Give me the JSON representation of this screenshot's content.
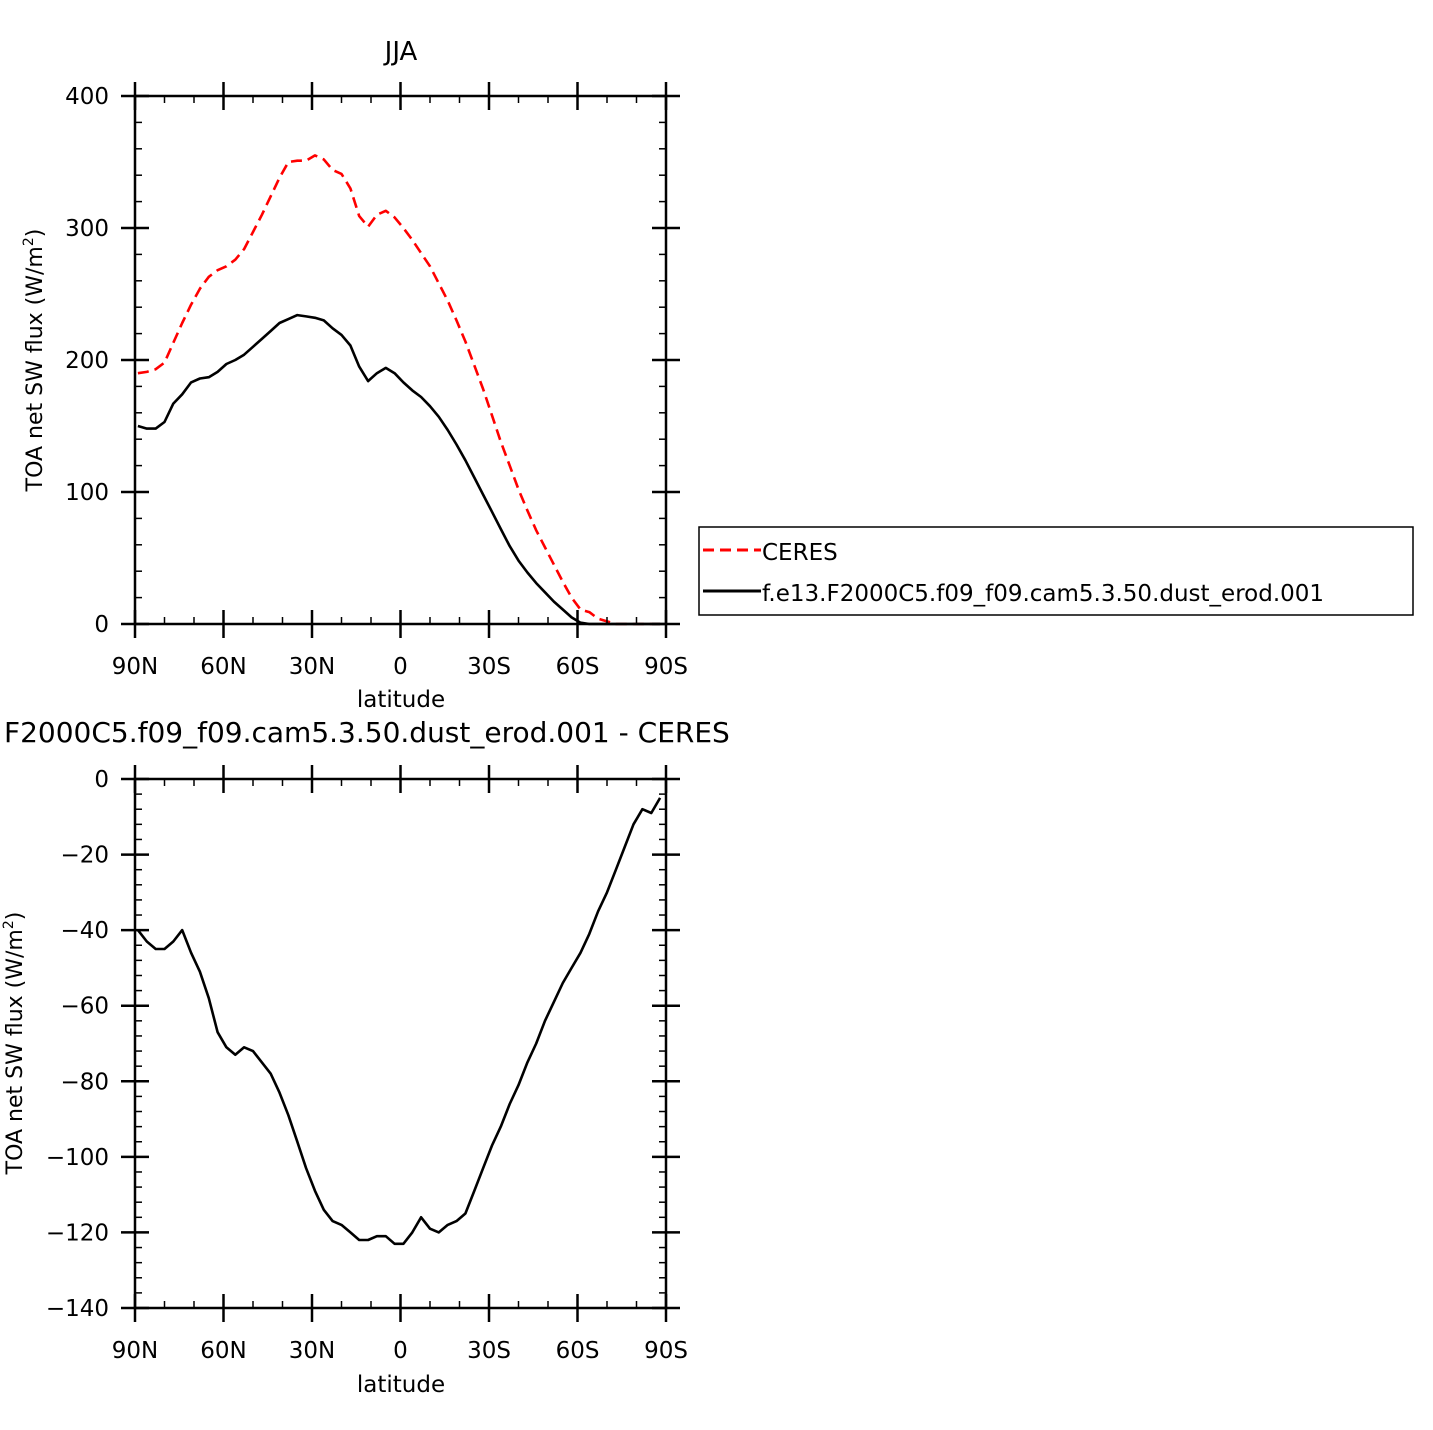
{
  "chart_data": [
    {
      "type": "line",
      "title": "JJA",
      "xlabel": "latitude",
      "ylabel_main": "TOA net SW flux (W/m",
      "ylabel_sup": "2",
      "ylabel_close": ")",
      "xlim": [
        90,
        -90
      ],
      "ylim": [
        0,
        400
      ],
      "x_ticks": [
        {
          "value": 90,
          "label": "90N"
        },
        {
          "value": 60,
          "label": "60N"
        },
        {
          "value": 30,
          "label": "30N"
        },
        {
          "value": 0,
          "label": "0"
        },
        {
          "value": -30,
          "label": "30S"
        },
        {
          "value": -60,
          "label": "60S"
        },
        {
          "value": -90,
          "label": "90S"
        }
      ],
      "y_ticks": [
        {
          "value": 0,
          "label": "0"
        },
        {
          "value": 100,
          "label": "100"
        },
        {
          "value": 200,
          "label": "200"
        },
        {
          "value": 300,
          "label": "300"
        },
        {
          "value": 400,
          "label": "400"
        }
      ],
      "legend": {
        "placement": "right",
        "entries": [
          {
            "label": "CERES",
            "color": "#ff0000",
            "dash": true
          },
          {
            "label": "f.e13.F2000C5.f09_f09.cam5.3.50.dust_erod.001",
            "color": "#000000",
            "dash": false
          }
        ]
      },
      "series": [
        {
          "name": "CERES",
          "color": "#ff0000",
          "dash": true,
          "x": [
            89,
            86,
            83,
            80,
            77,
            74,
            71,
            68,
            65,
            62,
            59,
            56,
            53,
            50,
            47,
            44,
            41,
            38,
            35,
            32,
            29,
            26,
            23,
            20,
            17,
            14,
            11,
            8,
            5,
            2,
            -1,
            -4,
            -7,
            -10,
            -13,
            -16,
            -19,
            -22,
            -25,
            -28,
            -31,
            -34,
            -37,
            -40,
            -43,
            -46,
            -49,
            -52,
            -55,
            -58,
            -61,
            -64,
            -67,
            -70,
            -73,
            -76,
            -79,
            -82,
            -85,
            -88
          ],
          "y": [
            190,
            191,
            193,
            198,
            213,
            228,
            242,
            254,
            263,
            268,
            271,
            276,
            284,
            297,
            310,
            324,
            338,
            350,
            351,
            351,
            355,
            352,
            344,
            341,
            330,
            309,
            301,
            310,
            313,
            308,
            300,
            291,
            281,
            271,
            258,
            245,
            230,
            214,
            196,
            178,
            158,
            138,
            120,
            102,
            86,
            71,
            58,
            45,
            32,
            20,
            11,
            9,
            4,
            2,
            0,
            0,
            0,
            0,
            0,
            0
          ]
        },
        {
          "name": "f.e13.F2000C5.f09_f09.cam5.3.50.dust_erod.001",
          "color": "#000000",
          "dash": false,
          "x": [
            89,
            86,
            83,
            80,
            77,
            74,
            71,
            68,
            65,
            62,
            59,
            56,
            53,
            50,
            47,
            44,
            41,
            38,
            35,
            32,
            29,
            26,
            23,
            20,
            17,
            14,
            11,
            8,
            5,
            2,
            -1,
            -4,
            -7,
            -10,
            -13,
            -16,
            -19,
            -22,
            -25,
            -28,
            -31,
            -34,
            -37,
            -40,
            -43,
            -46,
            -49,
            -52,
            -55,
            -58,
            -61,
            -64,
            -67,
            -70,
            -73,
            -76,
            -79,
            -82,
            -85,
            -88
          ],
          "y": [
            150,
            148,
            148,
            153,
            167,
            174,
            183,
            186,
            187,
            191,
            197,
            200,
            204,
            210,
            216,
            222,
            228,
            231,
            234,
            233,
            232,
            230,
            224,
            219,
            211,
            195,
            184,
            190,
            194,
            190,
            183,
            177,
            172,
            165,
            157,
            147,
            136,
            124,
            111,
            98,
            85,
            72,
            59,
            48,
            39,
            31,
            24,
            17,
            11,
            5,
            1,
            0,
            0,
            0,
            0,
            0,
            0,
            0,
            0,
            0
          ]
        }
      ]
    },
    {
      "type": "line",
      "title": "F2000C5.f09_f09.cam5.3.50.dust_erod.001 - CERES",
      "xlabel": "latitude",
      "ylabel_main": "TOA net SW flux (W/m",
      "ylabel_sup": "2",
      "ylabel_close": ")",
      "xlim": [
        90,
        -90
      ],
      "ylim": [
        -140,
        0
      ],
      "x_ticks": [
        {
          "value": 90,
          "label": "90N"
        },
        {
          "value": 60,
          "label": "60N"
        },
        {
          "value": 30,
          "label": "30N"
        },
        {
          "value": 0,
          "label": "0"
        },
        {
          "value": -30,
          "label": "30S"
        },
        {
          "value": -60,
          "label": "60S"
        },
        {
          "value": -90,
          "label": "90S"
        }
      ],
      "y_ticks": [
        {
          "value": 0,
          "label": "0"
        },
        {
          "value": -20,
          "label": "−20"
        },
        {
          "value": -40,
          "label": "−40"
        },
        {
          "value": -60,
          "label": "−60"
        },
        {
          "value": -80,
          "label": "−80"
        },
        {
          "value": -100,
          "label": "−100"
        },
        {
          "value": -120,
          "label": "−120"
        },
        {
          "value": -140,
          "label": "−140"
        }
      ],
      "series": [
        {
          "color": "#000000",
          "dash": false,
          "x": [
            89,
            86,
            83,
            80,
            77,
            74,
            71,
            68,
            65,
            62,
            59,
            56,
            53,
            50,
            47,
            44,
            41,
            38,
            35,
            32,
            29,
            26,
            23,
            20,
            17,
            14,
            11,
            8,
            5,
            2,
            -1,
            -4,
            -7,
            -10,
            -13,
            -16,
            -19,
            -22,
            -25,
            -28,
            -31,
            -34,
            -37,
            -40,
            -43,
            -46,
            -49,
            -52,
            -55,
            -58,
            -61,
            -64,
            -67,
            -70,
            -73,
            -76,
            -79,
            -82,
            -85,
            -88
          ],
          "y": [
            -40,
            -43,
            -45,
            -45,
            -43,
            -40,
            -46,
            -51,
            -58,
            -67,
            -71,
            -73,
            -71,
            -72,
            -75,
            -78,
            -83,
            -89,
            -96,
            -103,
            -109,
            -114,
            -117,
            -118,
            -120,
            -122,
            -122,
            -121,
            -121,
            -123,
            -123,
            -120,
            -116,
            -119,
            -120,
            -118,
            -117,
            -115,
            -109,
            -103,
            -97,
            -92,
            -86,
            -81,
            -75,
            -70,
            -64,
            -59,
            -54,
            -50,
            -46,
            -41,
            -35,
            -30,
            -24,
            -18,
            -12,
            -8,
            -9,
            -5
          ]
        }
      ]
    }
  ]
}
